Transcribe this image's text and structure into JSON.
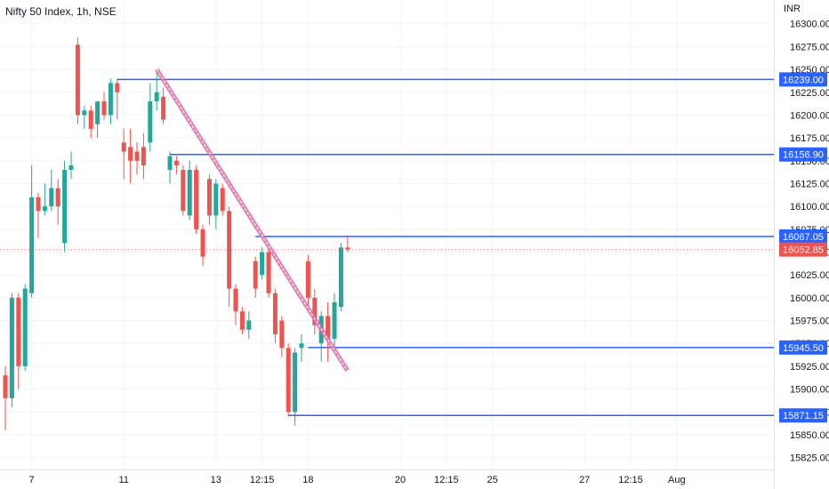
{
  "chart_data": {
    "type": "candlestick",
    "title": "Nifty 50 Index, 1h, NSE",
    "currency": "INR",
    "colors": {
      "up": "#26a69a",
      "down": "#ef5350",
      "level_line": "#2962ff",
      "trendline": "#e06aa8",
      "last_price_line": "#ef5350",
      "grid": "#f0f3fa",
      "axis_text": "#131722"
    },
    "ylim": [
      15812,
      16326
    ],
    "y_ticks": [
      16300,
      16275,
      16250,
      16225,
      16200,
      16175,
      16150,
      16125,
      16100,
      16075,
      16050,
      16025,
      16000,
      15975,
      15950,
      15925,
      15900,
      15875,
      15850,
      15825
    ],
    "y_tick_labels": [
      "16300.00",
      "16275.00",
      "16250.00",
      "16225.00",
      "16200.00",
      "16175.00",
      "16150.00",
      "16125.00",
      "16100.00",
      "16075.00",
      "16050.00",
      "16025.00",
      "16000.00",
      "15975.00",
      "15950.00",
      "15925.00",
      "15900.00",
      "15875.00",
      "15850.00",
      "15825.00"
    ],
    "x_ticks": [
      {
        "label": "7",
        "bar": 4
      },
      {
        "label": "11",
        "bar": 18
      },
      {
        "label": "13",
        "bar": 32
      },
      {
        "label": "12:15",
        "bar": 39
      },
      {
        "label": "18",
        "bar": 46
      },
      {
        "label": "20",
        "bar": 60
      },
      {
        "label": "12:15",
        "bar": 67
      },
      {
        "label": "25",
        "bar": 74
      },
      {
        "label": "27",
        "bar": 88
      },
      {
        "label": "12:15",
        "bar": 95
      },
      {
        "label": "Aug",
        "bar": 102
      }
    ],
    "candles": [
      {
        "o": 15915,
        "h": 15925,
        "l": 15855,
        "c": 15890
      },
      {
        "o": 15890,
        "h": 16005,
        "l": 15880,
        "c": 16000
      },
      {
        "o": 16000,
        "h": 16005,
        "l": 15900,
        "c": 15925
      },
      {
        "o": 15925,
        "h": 16015,
        "l": 15920,
        "c": 16010
      },
      {
        "o": 16005,
        "h": 16145,
        "l": 16000,
        "c": 16110
      },
      {
        "o": 16110,
        "h": 16115,
        "l": 16065,
        "c": 16095
      },
      {
        "o": 16095,
        "h": 16125,
        "l": 16090,
        "c": 16100
      },
      {
        "o": 16100,
        "h": 16140,
        "l": 16095,
        "c": 16120
      },
      {
        "o": 16120,
        "h": 16130,
        "l": 16080,
        "c": 16100
      },
      {
        "o": 16060,
        "h": 16150,
        "l": 16050,
        "c": 16140
      },
      {
        "o": 16140,
        "h": 16160,
        "l": 16130,
        "c": 16145
      },
      {
        "o": 16277,
        "h": 16285,
        "l": 16190,
        "c": 16200
      },
      {
        "o": 16200,
        "h": 16210,
        "l": 16185,
        "c": 16205
      },
      {
        "o": 16205,
        "h": 16210,
        "l": 16175,
        "c": 16185
      },
      {
        "o": 16190,
        "h": 16215,
        "l": 16175,
        "c": 16215
      },
      {
        "o": 16215,
        "h": 16225,
        "l": 16195,
        "c": 16200
      },
      {
        "o": 16200,
        "h": 16240,
        "l": 16190,
        "c": 16235
      },
      {
        "o": 16235,
        "h": 16240,
        "l": 16195,
        "c": 16225
      },
      {
        "o": 16170,
        "h": 16185,
        "l": 16130,
        "c": 16160
      },
      {
        "o": 16165,
        "h": 16185,
        "l": 16125,
        "c": 16150
      },
      {
        "o": 16160,
        "h": 16170,
        "l": 16135,
        "c": 16150
      },
      {
        "o": 16165,
        "h": 16180,
        "l": 16130,
        "c": 16145
      },
      {
        "o": 16170,
        "h": 16235,
        "l": 16160,
        "c": 16215
      },
      {
        "o": 16215,
        "h": 16250,
        "l": 16205,
        "c": 16225
      },
      {
        "o": 16220,
        "h": 16230,
        "l": 16190,
        "c": 16195
      },
      {
        "o": 16140,
        "h": 16160,
        "l": 16125,
        "c": 16155
      },
      {
        "o": 16150,
        "h": 16155,
        "l": 16135,
        "c": 16145
      },
      {
        "o": 16140,
        "h": 16145,
        "l": 16090,
        "c": 16095
      },
      {
        "o": 16090,
        "h": 16150,
        "l": 16085,
        "c": 16140
      },
      {
        "o": 16140,
        "h": 16145,
        "l": 16070,
        "c": 16075
      },
      {
        "o": 16075,
        "h": 16080,
        "l": 16035,
        "c": 16045
      },
      {
        "o": 16130,
        "h": 16135,
        "l": 16080,
        "c": 16090
      },
      {
        "o": 16090,
        "h": 16130,
        "l": 16075,
        "c": 16125
      },
      {
        "o": 16120,
        "h": 16125,
        "l": 16090,
        "c": 16095
      },
      {
        "o": 16095,
        "h": 16100,
        "l": 15990,
        "c": 16010
      },
      {
        "o": 16010,
        "h": 16015,
        "l": 15970,
        "c": 15985
      },
      {
        "o": 15985,
        "h": 15990,
        "l": 15960,
        "c": 15965
      },
      {
        "o": 15965,
        "h": 15985,
        "l": 15955,
        "c": 15975
      },
      {
        "o": 16040,
        "h": 16045,
        "l": 16000,
        "c": 16010
      },
      {
        "o": 16025,
        "h": 16055,
        "l": 16020,
        "c": 16050
      },
      {
        "o": 16050,
        "h": 16055,
        "l": 16000,
        "c": 16005
      },
      {
        "o": 16005,
        "h": 16010,
        "l": 15950,
        "c": 15960
      },
      {
        "o": 15975,
        "h": 15980,
        "l": 15935,
        "c": 15945
      },
      {
        "o": 15945,
        "h": 15950,
        "l": 15870,
        "c": 15875
      },
      {
        "o": 15875,
        "h": 15945,
        "l": 15860,
        "c": 15940
      },
      {
        "o": 15945,
        "h": 15960,
        "l": 15930,
        "c": 15950
      },
      {
        "o": 16040,
        "h": 16047,
        "l": 15990,
        "c": 16000
      },
      {
        "o": 16000,
        "h": 16010,
        "l": 15960,
        "c": 15970
      },
      {
        "o": 15950,
        "h": 15985,
        "l": 15930,
        "c": 15980
      },
      {
        "o": 15980,
        "h": 15995,
        "l": 15930,
        "c": 15955
      },
      {
        "o": 15955,
        "h": 16005,
        "l": 15945,
        "c": 15995
      },
      {
        "o": 15990,
        "h": 16060,
        "l": 15985,
        "c": 16055
      },
      {
        "o": 16055,
        "h": 16067,
        "l": 16050,
        "c": 16052.85
      }
    ],
    "levels": [
      {
        "value": 16239.0,
        "label": "16239.00",
        "from_bar": 17
      },
      {
        "value": 16156.9,
        "label": "16156.90",
        "from_bar": 25
      },
      {
        "value": 16067.05,
        "label": "16067.05",
        "from_bar": 38
      },
      {
        "value": 15945.5,
        "label": "15945.50",
        "from_bar": 46
      },
      {
        "value": 15871.15,
        "label": "15871.15",
        "from_bar": 43
      }
    ],
    "last_price": {
      "value": 16052.85,
      "label": "16052.85"
    },
    "trendline": {
      "from": {
        "bar": 23,
        "price": 16250
      },
      "to": {
        "bar": 52,
        "price": 15920
      }
    }
  }
}
